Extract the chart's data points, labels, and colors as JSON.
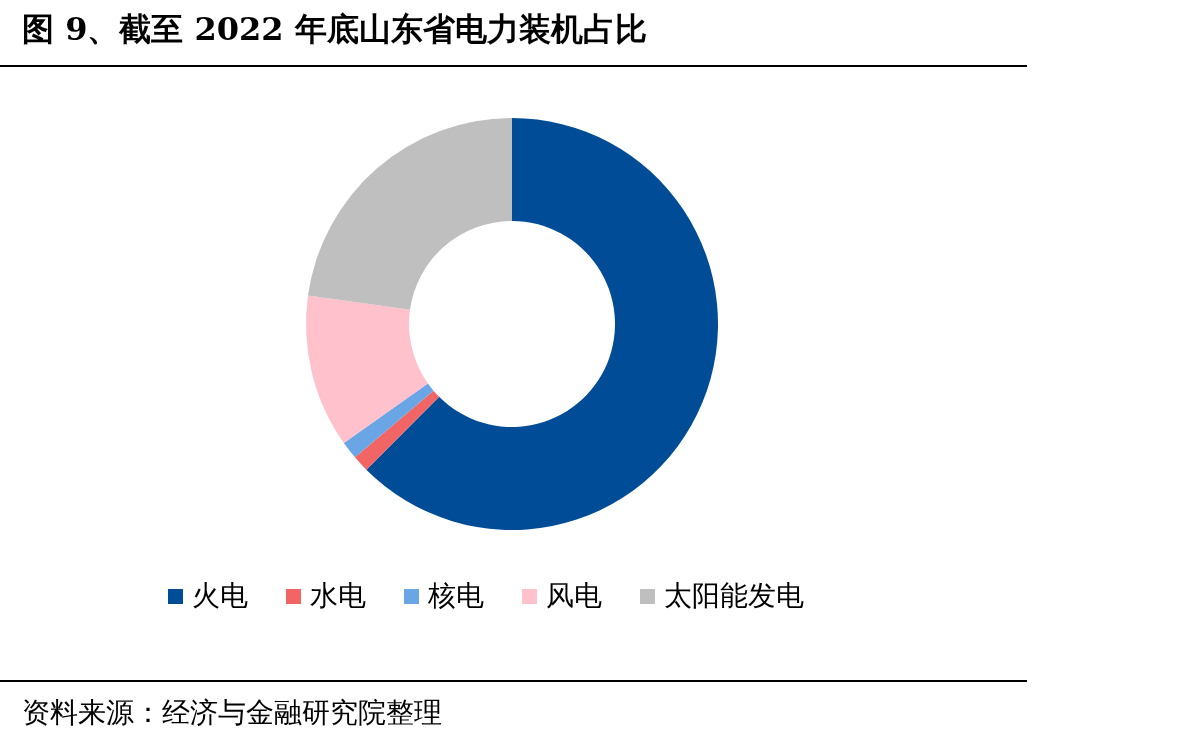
{
  "chart_data": {
    "type": "donut",
    "title": "图 9、截至 2022 年底山东省电力装机占比",
    "categories": [
      "火电",
      "水电",
      "核电",
      "风电",
      "太阳能发电"
    ],
    "values": [
      62.5,
      1.3,
      1.4,
      12.0,
      22.8
    ],
    "colors": [
      "#004c97",
      "#f26565",
      "#6aa6e6",
      "#ffc1cc",
      "#bfbfbf"
    ],
    "legend": "bottom",
    "annotations": [
      "资料来源：经济与金融研究院整理"
    ]
  }
}
